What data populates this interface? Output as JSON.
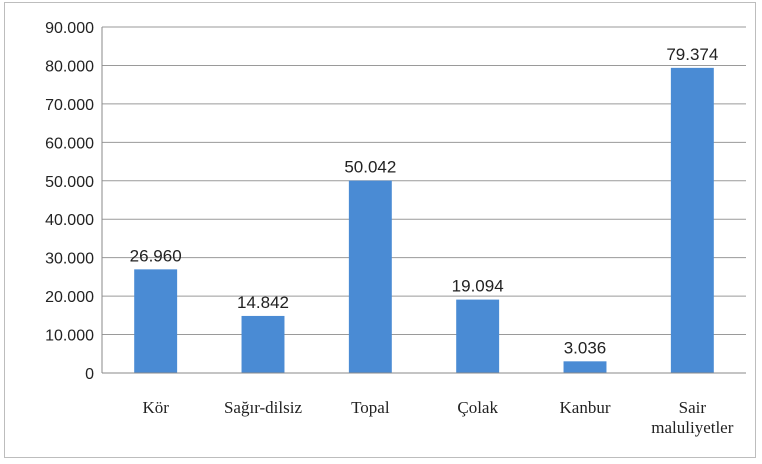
{
  "chart_data": {
    "type": "bar",
    "title": "",
    "xlabel": "",
    "ylabel": "",
    "categories": [
      "Kör",
      "Sağır-dilsiz",
      "Topal",
      "Çolak",
      "Kanbur",
      "Sair maluliyetler"
    ],
    "category_lines": [
      [
        "Kör"
      ],
      [
        "Sağır-dilsiz"
      ],
      [
        "Topal"
      ],
      [
        "Çolak"
      ],
      [
        "Kanbur"
      ],
      [
        "Sair",
        "maluliyetler"
      ]
    ],
    "values": [
      26960,
      14842,
      50042,
      19094,
      3036,
      79374
    ],
    "value_labels": [
      "26.960",
      "14.842",
      "50.042",
      "19.094",
      "3.036",
      "79.374"
    ],
    "ylim": [
      0,
      90000
    ],
    "yticks": [
      0,
      10000,
      20000,
      30000,
      40000,
      50000,
      60000,
      70000,
      80000,
      90000
    ],
    "ytick_labels": [
      "0",
      "10.000",
      "20.000",
      "30.000",
      "40.000",
      "50.000",
      "60.000",
      "70.000",
      "80.000",
      "90.000"
    ],
    "grid": true,
    "legend": "none",
    "bar_color": "#4a8bd4",
    "grid_color": "#9a9a9a"
  }
}
